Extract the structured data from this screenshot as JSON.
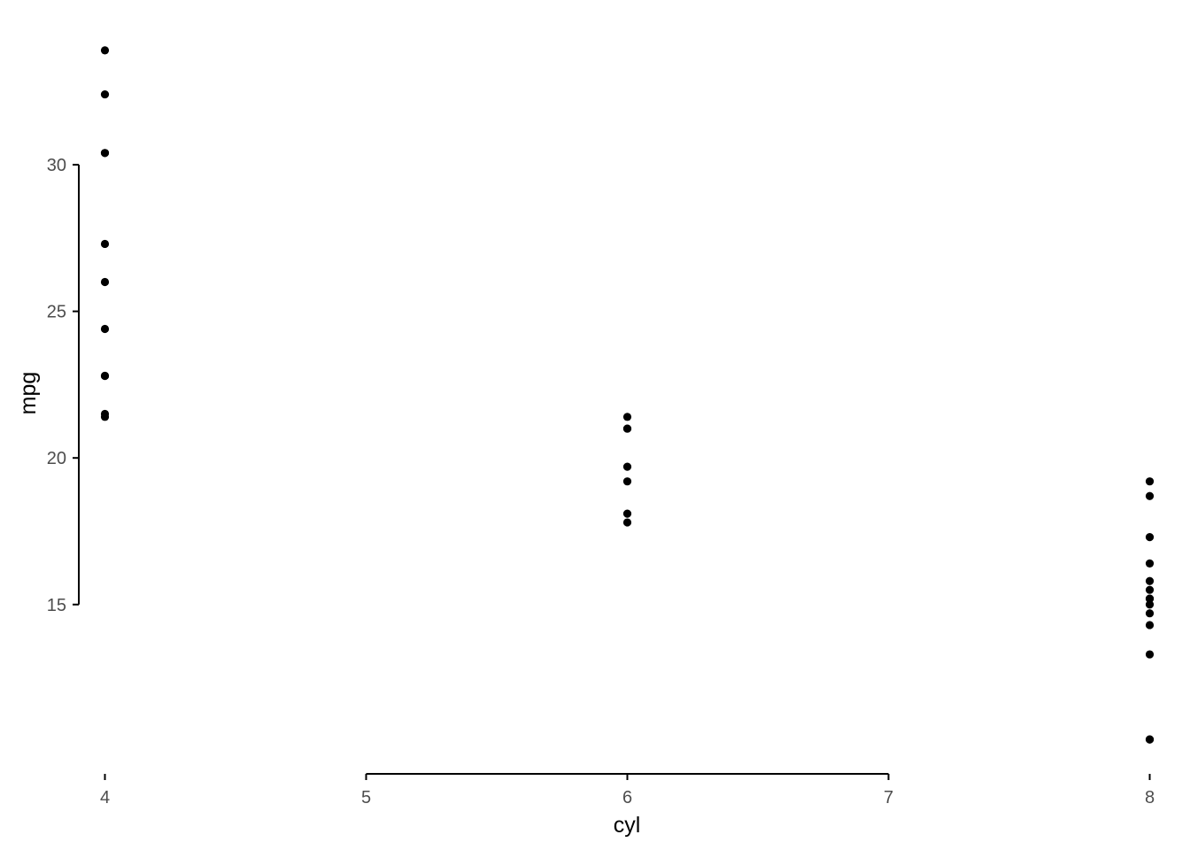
{
  "chart_data": {
    "type": "scatter",
    "title": "",
    "xlabel": "cyl",
    "ylabel": "mpg",
    "xlim": [
      3.9,
      8.1
    ],
    "ylim": [
      9.225,
      35.075
    ],
    "x_axis_line_range": [
      5,
      7
    ],
    "y_axis_line_range": [
      15,
      30
    ],
    "x_ticks": [
      4,
      5,
      6,
      7,
      8
    ],
    "y_ticks": [
      15,
      20,
      25,
      30
    ],
    "grid": false,
    "legend": "none",
    "point_color": "#000000",
    "points": [
      {
        "x": 6,
        "y": 21.0
      },
      {
        "x": 6,
        "y": 21.0
      },
      {
        "x": 4,
        "y": 22.8
      },
      {
        "x": 6,
        "y": 21.4
      },
      {
        "x": 8,
        "y": 18.7
      },
      {
        "x": 6,
        "y": 18.1
      },
      {
        "x": 8,
        "y": 14.3
      },
      {
        "x": 4,
        "y": 24.4
      },
      {
        "x": 4,
        "y": 22.8
      },
      {
        "x": 6,
        "y": 19.2
      },
      {
        "x": 6,
        "y": 17.8
      },
      {
        "x": 8,
        "y": 16.4
      },
      {
        "x": 8,
        "y": 17.3
      },
      {
        "x": 8,
        "y": 15.2
      },
      {
        "x": 8,
        "y": 10.4
      },
      {
        "x": 8,
        "y": 10.4
      },
      {
        "x": 8,
        "y": 14.7
      },
      {
        "x": 4,
        "y": 32.4
      },
      {
        "x": 4,
        "y": 30.4
      },
      {
        "x": 4,
        "y": 33.9
      },
      {
        "x": 4,
        "y": 21.5
      },
      {
        "x": 8,
        "y": 15.5
      },
      {
        "x": 8,
        "y": 15.2
      },
      {
        "x": 8,
        "y": 13.3
      },
      {
        "x": 8,
        "y": 19.2
      },
      {
        "x": 4,
        "y": 27.3
      },
      {
        "x": 4,
        "y": 26.0
      },
      {
        "x": 4,
        "y": 30.4
      },
      {
        "x": 8,
        "y": 15.8
      },
      {
        "x": 6,
        "y": 19.7
      },
      {
        "x": 8,
        "y": 15.0
      },
      {
        "x": 4,
        "y": 21.4
      }
    ]
  }
}
